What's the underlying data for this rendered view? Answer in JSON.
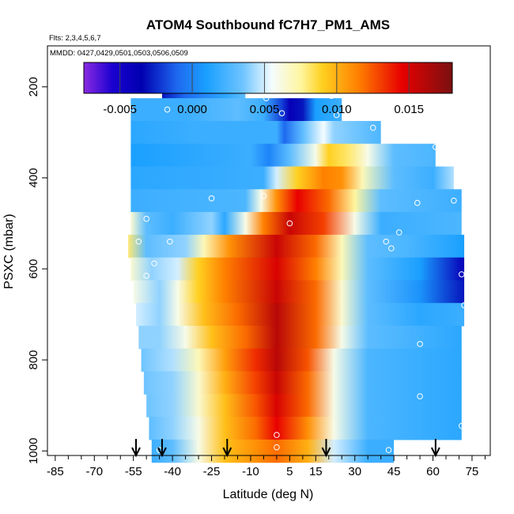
{
  "chart_data": {
    "type": "heatmap",
    "title": "ATOM4 Southbound fC7H7_PM1_AMS",
    "flights_label": "Flts: 2,3,4,5,6,7",
    "dates_label": "MMDD: 0427,0429,0501,0503,0506,0509",
    "xlabel": "Latitude (deg N)",
    "ylabel": "PSXC (mbar)",
    "xlim": [
      -88,
      82
    ],
    "ylim": [
      1010,
      110
    ],
    "xticks": [
      -85,
      -70,
      -55,
      -40,
      -25,
      -10,
      5,
      15,
      30,
      45,
      60,
      75
    ],
    "xtick_labels": [
      "-85",
      "-70",
      "-55",
      "-40",
      "-25",
      "-10",
      "5",
      "15",
      "30",
      "45",
      "60",
      "75"
    ],
    "yticks": [
      200,
      400,
      600,
      800,
      1000
    ],
    "ytick_labels": [
      "200",
      "400",
      "600",
      "800",
      "1000"
    ],
    "colorbar": {
      "min": -0.0075,
      "max": 0.018,
      "ticks": [
        -0.005,
        0.0,
        0.005,
        0.01,
        0.015
      ],
      "tick_labels": [
        "-0.005",
        "0.000",
        "0.005",
        "0.010",
        "0.015"
      ],
      "stops": [
        {
          "v": -0.0075,
          "c": "#8A2BE2"
        },
        {
          "v": -0.0055,
          "c": "#1A00D0"
        },
        {
          "v": -0.0035,
          "c": "#0000B0"
        },
        {
          "v": -0.001,
          "c": "#1E6AF0"
        },
        {
          "v": 0.001,
          "c": "#1AA0FF"
        },
        {
          "v": 0.0035,
          "c": "#6EC4FF"
        },
        {
          "v": 0.0055,
          "c": "#F4FCFF"
        },
        {
          "v": 0.0075,
          "c": "#FFF6A0"
        },
        {
          "v": 0.009,
          "c": "#FFD020"
        },
        {
          "v": 0.0115,
          "c": "#FF8000"
        },
        {
          "v": 0.0145,
          "c": "#E80000"
        },
        {
          "v": 0.018,
          "c": "#7A1010"
        }
      ]
    },
    "rows": [
      {
        "p": 200,
        "x0": -44,
        "x1": -12,
        "fill": [
          {
            "x": -44,
            "v": -0.003
          },
          {
            "x": -35,
            "v": -0.001
          },
          {
            "x": -20,
            "v": 0.0015
          },
          {
            "x": -12,
            "v": 0.003
          }
        ]
      },
      {
        "p": 250,
        "x0": -56,
        "x1": 25,
        "fill": [
          {
            "x": -56,
            "v": 0.002
          },
          {
            "x": -35,
            "v": 0.002
          },
          {
            "x": -15,
            "v": 0.003
          },
          {
            "x": -5,
            "v": 0.002
          },
          {
            "x": 2,
            "v": -0.002
          },
          {
            "x": 5,
            "v": -0.004
          },
          {
            "x": 10,
            "v": -0.003
          },
          {
            "x": 15,
            "v": 0.001
          },
          {
            "x": 25,
            "v": 0.002
          }
        ]
      },
      {
        "p": 300,
        "x0": -56,
        "x1": 40,
        "fill": [
          {
            "x": -56,
            "v": 0.0015
          },
          {
            "x": -30,
            "v": 0.002
          },
          {
            "x": 0,
            "v": 0.002
          },
          {
            "x": 3,
            "v": -0.001
          },
          {
            "x": 10,
            "v": 0.003
          },
          {
            "x": 18,
            "v": 0.0055
          },
          {
            "x": 22,
            "v": 0.004
          },
          {
            "x": 40,
            "v": 0.0025
          }
        ]
      },
      {
        "p": 350,
        "x0": -56,
        "x1": 61,
        "fill": [
          {
            "x": -56,
            "v": 0.001
          },
          {
            "x": -10,
            "v": 0.002
          },
          {
            "x": -3,
            "v": 0.0
          },
          {
            "x": 5,
            "v": 0.003
          },
          {
            "x": 15,
            "v": 0.006
          },
          {
            "x": 20,
            "v": 0.009
          },
          {
            "x": 28,
            "v": 0.008
          },
          {
            "x": 35,
            "v": 0.006
          },
          {
            "x": 45,
            "v": 0.003
          },
          {
            "x": 61,
            "v": 0.0025
          }
        ]
      },
      {
        "p": 400,
        "x0": -56,
        "x1": 68,
        "fill": [
          {
            "x": -56,
            "v": 0.0015
          },
          {
            "x": -5,
            "v": 0.002
          },
          {
            "x": 0,
            "v": 0.005
          },
          {
            "x": 8,
            "v": 0.009
          },
          {
            "x": 18,
            "v": 0.0115
          },
          {
            "x": 25,
            "v": 0.011
          },
          {
            "x": 33,
            "v": 0.007
          },
          {
            "x": 45,
            "v": 0.003
          },
          {
            "x": 60,
            "v": 0.002
          },
          {
            "x": 68,
            "v": 0.0045
          }
        ]
      },
      {
        "p": 450,
        "x0": -56,
        "x1": 71,
        "fill": [
          {
            "x": -56,
            "v": 0.002
          },
          {
            "x": -12,
            "v": 0.0025
          },
          {
            "x": -6,
            "v": 0.006
          },
          {
            "x": 0,
            "v": 0.011
          },
          {
            "x": 8,
            "v": 0.0145
          },
          {
            "x": 20,
            "v": 0.012
          },
          {
            "x": 30,
            "v": 0.0075
          },
          {
            "x": 40,
            "v": 0.003
          },
          {
            "x": 71,
            "v": 0.002
          }
        ]
      },
      {
        "p": 500,
        "x0": -56,
        "x1": 71,
        "fill": [
          {
            "x": -56,
            "v": 0.0065
          },
          {
            "x": -50,
            "v": 0.003
          },
          {
            "x": -40,
            "v": 0.002
          },
          {
            "x": -25,
            "v": 0.004
          },
          {
            "x": -20,
            "v": 0.0015
          },
          {
            "x": -12,
            "v": 0.006
          },
          {
            "x": -5,
            "v": 0.0115
          },
          {
            "x": 5,
            "v": 0.0155
          },
          {
            "x": 18,
            "v": 0.013
          },
          {
            "x": 30,
            "v": 0.006
          },
          {
            "x": 40,
            "v": 0.002
          },
          {
            "x": 71,
            "v": 0.0025
          }
        ]
      },
      {
        "p": 550,
        "x0": -57,
        "x1": 72,
        "fill": [
          {
            "x": -57,
            "v": 0.008
          },
          {
            "x": -50,
            "v": 0.003
          },
          {
            "x": -35,
            "v": 0.004
          },
          {
            "x": -28,
            "v": 0.007
          },
          {
            "x": -18,
            "v": 0.011
          },
          {
            "x": 0,
            "v": 0.0155
          },
          {
            "x": 15,
            "v": 0.012
          },
          {
            "x": 25,
            "v": 0.007
          },
          {
            "x": 35,
            "v": 0.003
          },
          {
            "x": 50,
            "v": 0.0025
          },
          {
            "x": 72,
            "v": 0.001
          }
        ]
      },
      {
        "p": 600,
        "x0": -56,
        "x1": 72,
        "fill": [
          {
            "x": -56,
            "v": 0.0065
          },
          {
            "x": -48,
            "v": 0.004
          },
          {
            "x": -38,
            "v": 0.005
          },
          {
            "x": -30,
            "v": 0.009
          },
          {
            "x": -20,
            "v": 0.0115
          },
          {
            "x": 0,
            "v": 0.015
          },
          {
            "x": 15,
            "v": 0.0115
          },
          {
            "x": 25,
            "v": 0.007
          },
          {
            "x": 35,
            "v": 0.003
          },
          {
            "x": 55,
            "v": 0.001
          },
          {
            "x": 72,
            "v": -0.004
          }
        ]
      },
      {
        "p": 650,
        "x0": -55,
        "x1": 72,
        "fill": [
          {
            "x": -55,
            "v": 0.006
          },
          {
            "x": -45,
            "v": 0.004
          },
          {
            "x": -38,
            "v": 0.006
          },
          {
            "x": -30,
            "v": 0.009
          },
          {
            "x": -20,
            "v": 0.0115
          },
          {
            "x": 0,
            "v": 0.0155
          },
          {
            "x": 15,
            "v": 0.012
          },
          {
            "x": 25,
            "v": 0.0065
          },
          {
            "x": 35,
            "v": 0.003
          },
          {
            "x": 55,
            "v": 0.0005
          },
          {
            "x": 72,
            "v": -0.003
          }
        ]
      },
      {
        "p": 700,
        "x0": -54,
        "x1": 72,
        "fill": [
          {
            "x": -54,
            "v": 0.005
          },
          {
            "x": -45,
            "v": 0.004
          },
          {
            "x": -38,
            "v": 0.006
          },
          {
            "x": -28,
            "v": 0.0095
          },
          {
            "x": -15,
            "v": 0.012
          },
          {
            "x": 0,
            "v": 0.016
          },
          {
            "x": 15,
            "v": 0.012
          },
          {
            "x": 25,
            "v": 0.0065
          },
          {
            "x": 35,
            "v": 0.003
          },
          {
            "x": 55,
            "v": 0.0015
          },
          {
            "x": 72,
            "v": 0.002
          }
        ]
      },
      {
        "p": 750,
        "x0": -53,
        "x1": 71,
        "fill": [
          {
            "x": -53,
            "v": 0.004
          },
          {
            "x": -45,
            "v": 0.004
          },
          {
            "x": -35,
            "v": 0.006
          },
          {
            "x": -25,
            "v": 0.0095
          },
          {
            "x": -12,
            "v": 0.012
          },
          {
            "x": 0,
            "v": 0.016
          },
          {
            "x": 15,
            "v": 0.012
          },
          {
            "x": 25,
            "v": 0.006
          },
          {
            "x": 35,
            "v": 0.003
          },
          {
            "x": 71,
            "v": 0.0015
          }
        ]
      },
      {
        "p": 800,
        "x0": -52,
        "x1": 71,
        "fill": [
          {
            "x": -52,
            "v": 0.0035
          },
          {
            "x": -40,
            "v": 0.0045
          },
          {
            "x": -30,
            "v": 0.007
          },
          {
            "x": -20,
            "v": 0.0105
          },
          {
            "x": -8,
            "v": 0.0135
          },
          {
            "x": 0,
            "v": 0.016
          },
          {
            "x": 12,
            "v": 0.0125
          },
          {
            "x": 22,
            "v": 0.006
          },
          {
            "x": 35,
            "v": 0.0025
          },
          {
            "x": 71,
            "v": 0.0015
          }
        ]
      },
      {
        "p": 850,
        "x0": -51,
        "x1": 71,
        "fill": [
          {
            "x": -51,
            "v": 0.0035
          },
          {
            "x": -40,
            "v": 0.004
          },
          {
            "x": -30,
            "v": 0.0065
          },
          {
            "x": -20,
            "v": 0.01
          },
          {
            "x": -8,
            "v": 0.013
          },
          {
            "x": 0,
            "v": 0.0155
          },
          {
            "x": 12,
            "v": 0.012
          },
          {
            "x": 22,
            "v": 0.006
          },
          {
            "x": 35,
            "v": 0.0025
          },
          {
            "x": 71,
            "v": 0.0015
          }
        ]
      },
      {
        "p": 900,
        "x0": -50,
        "x1": 71,
        "fill": [
          {
            "x": -50,
            "v": 0.0035
          },
          {
            "x": -40,
            "v": 0.004
          },
          {
            "x": -30,
            "v": 0.0065
          },
          {
            "x": -20,
            "v": 0.0095
          },
          {
            "x": -8,
            "v": 0.0125
          },
          {
            "x": 0,
            "v": 0.015
          },
          {
            "x": 12,
            "v": 0.012
          },
          {
            "x": 22,
            "v": 0.006
          },
          {
            "x": 35,
            "v": 0.0025
          },
          {
            "x": 71,
            "v": 0.0015
          }
        ]
      },
      {
        "p": 950,
        "x0": -49,
        "x1": 71,
        "fill": [
          {
            "x": -49,
            "v": 0.003
          },
          {
            "x": -40,
            "v": 0.004
          },
          {
            "x": -30,
            "v": 0.006
          },
          {
            "x": -20,
            "v": 0.0095
          },
          {
            "x": -8,
            "v": 0.012
          },
          {
            "x": 0,
            "v": 0.0145
          },
          {
            "x": 12,
            "v": 0.011
          },
          {
            "x": 22,
            "v": 0.006
          },
          {
            "x": 35,
            "v": 0.0025
          },
          {
            "x": 71,
            "v": 0.0015
          }
        ]
      },
      {
        "p": 1000,
        "x0": -48,
        "x1": 45,
        "fill": [
          {
            "x": -48,
            "v": 0.002
          },
          {
            "x": -40,
            "v": 0.003
          },
          {
            "x": -30,
            "v": 0.006
          },
          {
            "x": -20,
            "v": 0.0095
          },
          {
            "x": -8,
            "v": 0.011
          },
          {
            "x": 0,
            "v": 0.012
          },
          {
            "x": 12,
            "v": 0.01
          },
          {
            "x": 22,
            "v": 0.005
          },
          {
            "x": 35,
            "v": 0.002
          },
          {
            "x": 45,
            "v": 0.002
          }
        ]
      }
    ],
    "markers": [
      {
        "lat": -45,
        "p": 205
      },
      {
        "lat": -12,
        "p": 205
      },
      {
        "lat": -56,
        "p": 250
      },
      {
        "lat": -42,
        "p": 250
      },
      {
        "lat": -4,
        "p": 225
      },
      {
        "lat": 2,
        "p": 258
      },
      {
        "lat": 21,
        "p": 220
      },
      {
        "lat": 23,
        "p": 262
      },
      {
        "lat": 30,
        "p": 262
      },
      {
        "lat": 37,
        "p": 290
      },
      {
        "lat": 61,
        "p": 332
      },
      {
        "lat": -5,
        "p": 440
      },
      {
        "lat": -25,
        "p": 445
      },
      {
        "lat": 5,
        "p": 500
      },
      {
        "lat": -50,
        "p": 490
      },
      {
        "lat": -53,
        "p": 540
      },
      {
        "lat": -41,
        "p": 540
      },
      {
        "lat": -47,
        "p": 588
      },
      {
        "lat": -50,
        "p": 615
      },
      {
        "lat": 42,
        "p": 540
      },
      {
        "lat": 47,
        "p": 520
      },
      {
        "lat": 44,
        "p": 555
      },
      {
        "lat": 68,
        "p": 450
      },
      {
        "lat": 54,
        "p": 455
      },
      {
        "lat": 71,
        "p": 612
      },
      {
        "lat": 72,
        "p": 680
      },
      {
        "lat": 55,
        "p": 765
      },
      {
        "lat": 55,
        "p": 880
      },
      {
        "lat": 71,
        "p": 945
      },
      {
        "lat": 0,
        "p": 965
      },
      {
        "lat": 0,
        "p": 992
      },
      {
        "lat": -45,
        "p": 998
      },
      {
        "lat": -50,
        "p": 1000
      },
      {
        "lat": 43,
        "p": 998
      }
    ],
    "arrows": [
      -54,
      -44,
      -19,
      19,
      61
    ]
  }
}
